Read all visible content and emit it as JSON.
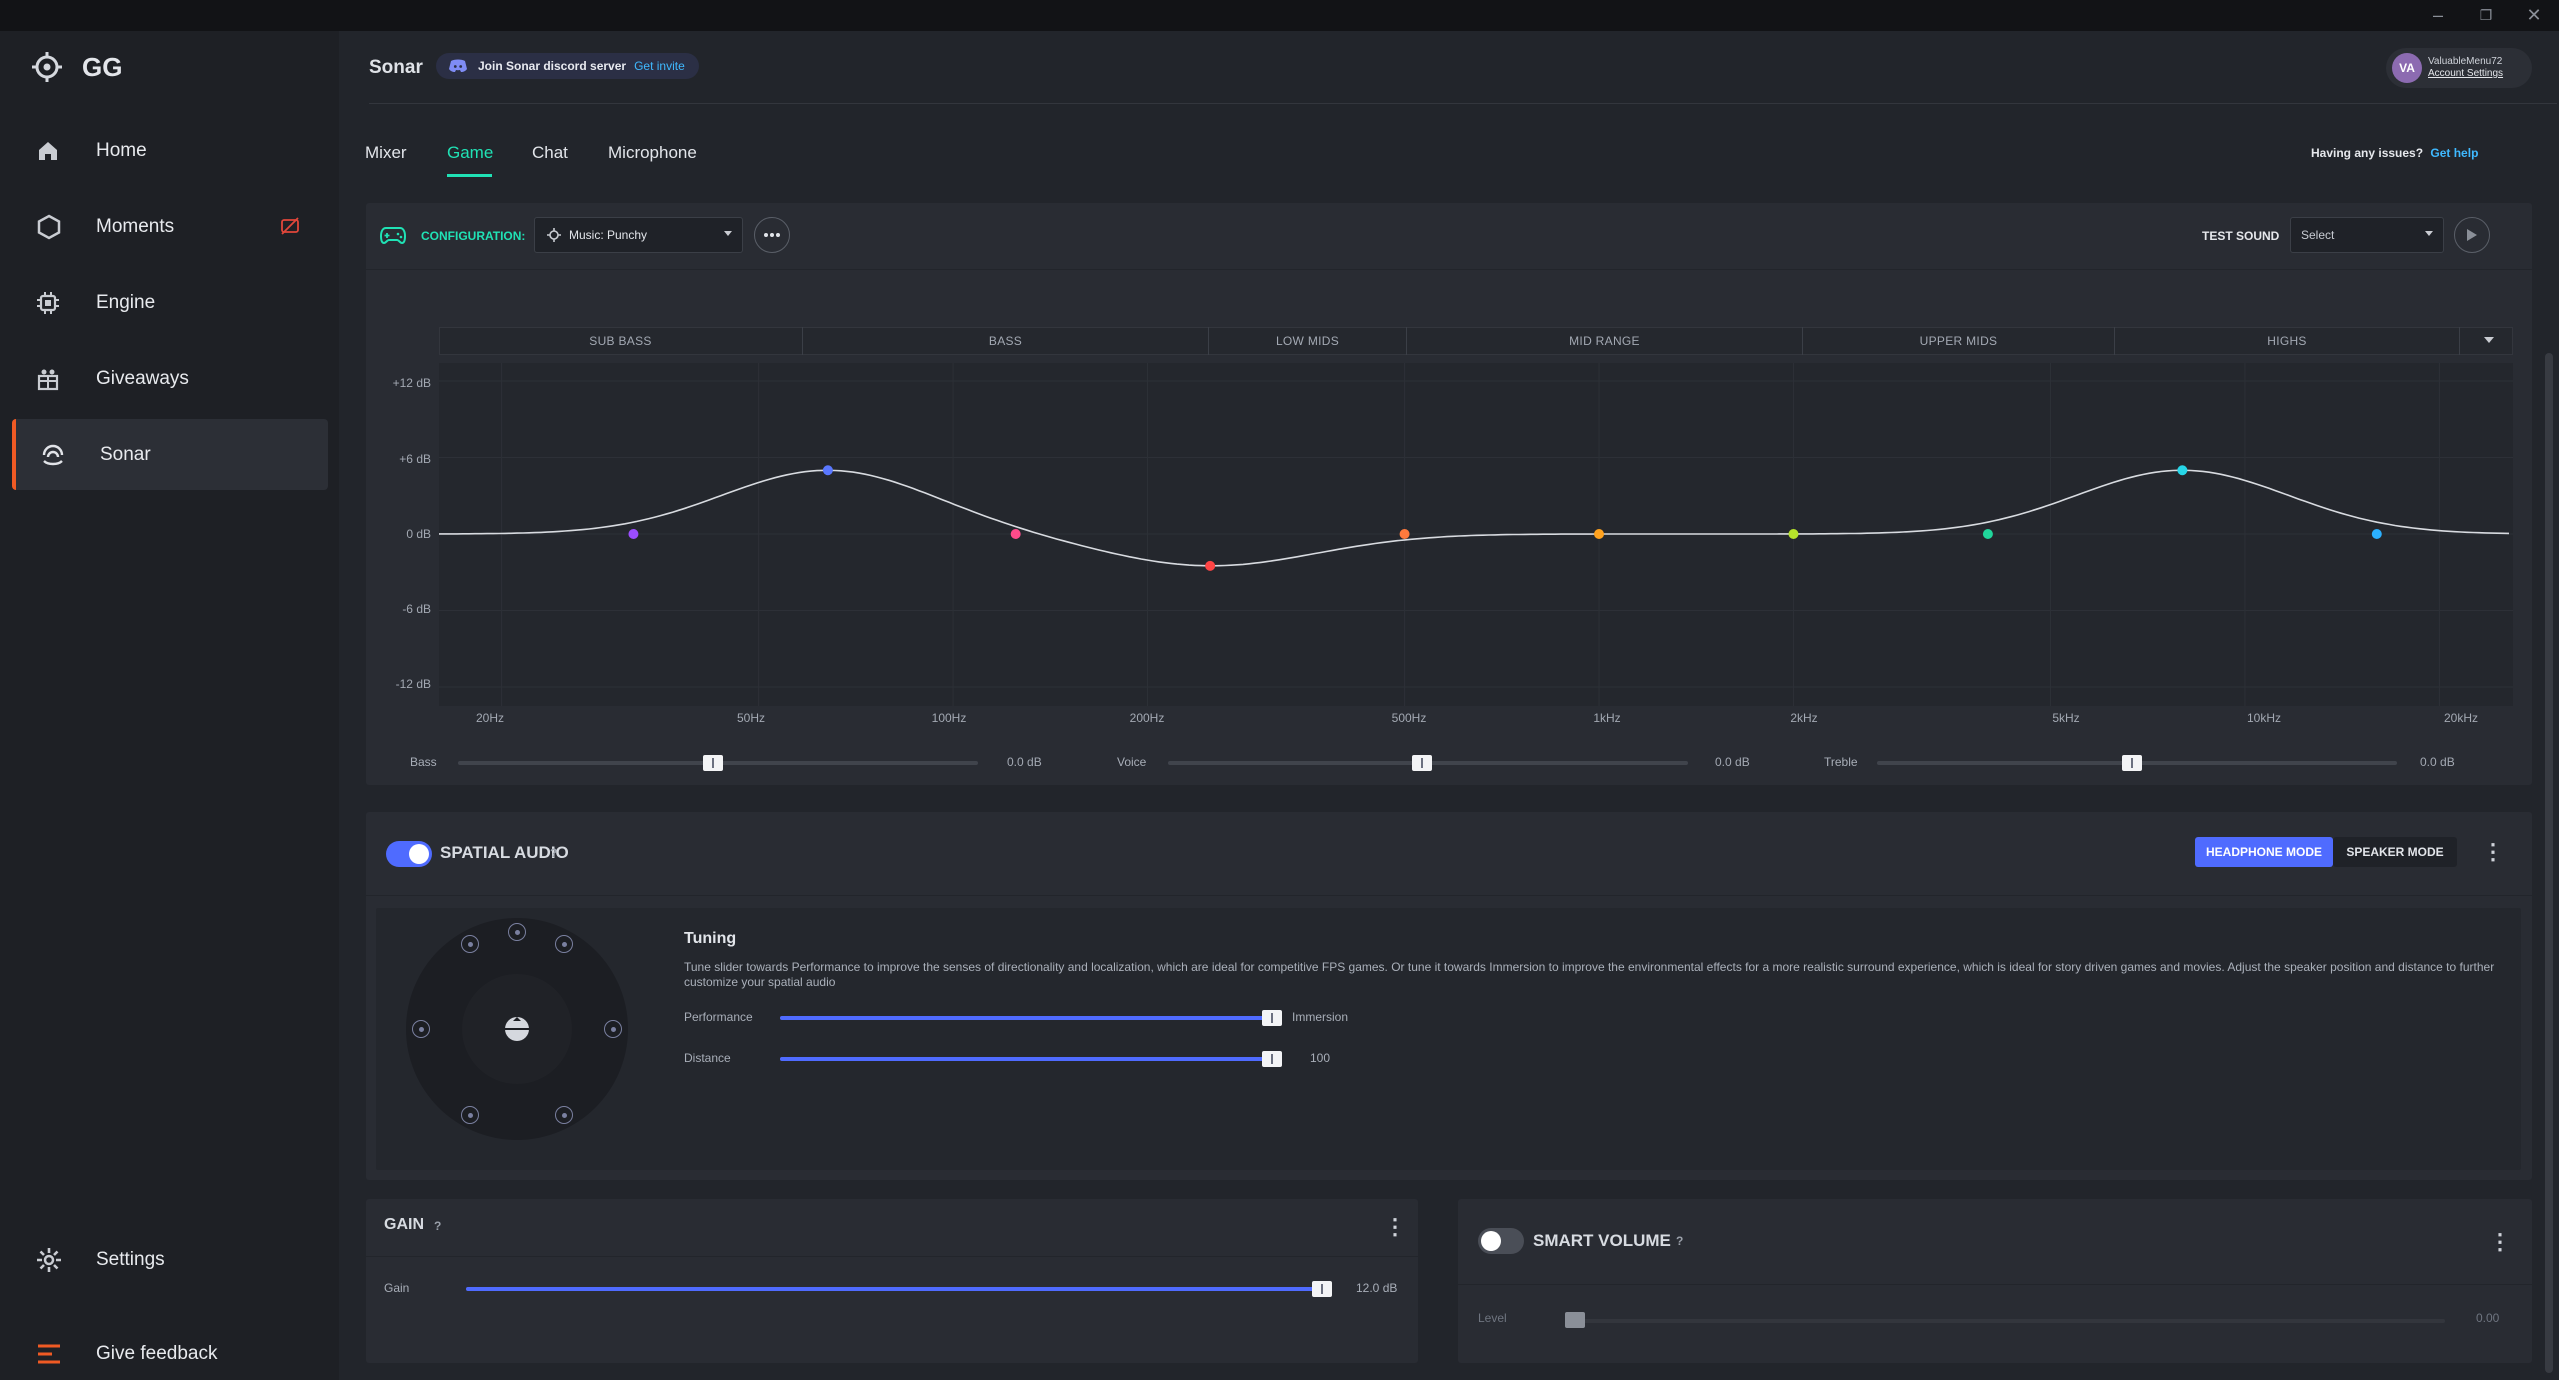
{
  "window": {
    "controls": [
      "–",
      "❐",
      "✕"
    ]
  },
  "brand": {
    "logo_text": "GG"
  },
  "sidebar": {
    "items": [
      {
        "label": "Home",
        "icon": "home-icon"
      },
      {
        "label": "Moments",
        "icon": "moments-icon"
      },
      {
        "label": "Engine",
        "icon": "engine-icon"
      },
      {
        "label": "Giveaways",
        "icon": "giveaways-icon"
      },
      {
        "label": "Sonar",
        "icon": "sonar-icon"
      }
    ],
    "settings_label": "Settings",
    "feedback_label": "Give feedback"
  },
  "header": {
    "title": "Sonar",
    "discord_text": "Join Sonar discord server",
    "discord_link": "Get invite",
    "avatar_initials": "VA",
    "username": "ValuableMenu72",
    "account_link": "Account Settings"
  },
  "tabs": [
    "Mixer",
    "Game",
    "Chat",
    "Microphone"
  ],
  "help": {
    "text": "Having any issues?",
    "link": "Get help"
  },
  "config": {
    "label": "CONFIGURATION:",
    "value": "Music: Punchy",
    "test_sound_label": "TEST SOUND",
    "test_sound_value": "Select"
  },
  "eq": {
    "bands": [
      "SUB BASS",
      "BASS",
      "LOW MIDS",
      "MID RANGE",
      "UPPER MIDS",
      "HIGHS"
    ],
    "db_labels": [
      "+12 dB",
      "+6 dB",
      "0 dB",
      "-6 dB",
      "-12 dB"
    ],
    "freq_labels": [
      "20Hz",
      "50Hz",
      "100Hz",
      "200Hz",
      "500Hz",
      "1kHz",
      "2kHz",
      "5kHz",
      "10kHz",
      "20kHz"
    ],
    "points": [
      {
        "freq": "32Hz",
        "gain_db": 0.0,
        "color": "#9b4dff"
      },
      {
        "freq": "64Hz",
        "gain_db": 5.0,
        "color": "#5a78ff"
      },
      {
        "freq": "125Hz",
        "gain_db": 0.0,
        "color": "#ff4b8b"
      },
      {
        "freq": "250Hz",
        "gain_db": -2.5,
        "color": "#ff4545"
      },
      {
        "freq": "500Hz",
        "gain_db": 0.0,
        "color": "#ff7a3d"
      },
      {
        "freq": "1kHz",
        "gain_db": 0.0,
        "color": "#ffa21f"
      },
      {
        "freq": "2kHz",
        "gain_db": 0.0,
        "color": "#b6e32b"
      },
      {
        "freq": "4kHz",
        "gain_db": 0.0,
        "color": "#20d69b"
      },
      {
        "freq": "8kHz",
        "gain_db": 5.0,
        "color": "#27d6e8"
      },
      {
        "freq": "16kHz",
        "gain_db": 0.0,
        "color": "#2bb0ff"
      }
    ],
    "sliders": [
      {
        "label": "Bass",
        "value": "0.0 dB",
        "level": 0.5
      },
      {
        "label": "Voice",
        "value": "0.0 dB",
        "level": 0.5
      },
      {
        "label": "Treble",
        "value": "0.0 dB",
        "level": 0.5
      }
    ]
  },
  "spatial": {
    "title": "SPATIAL AUDIO",
    "help": "?",
    "enabled": true,
    "mode_headphone": "HEADPHONE MODE",
    "mode_speaker": "SPEAKER MODE",
    "tuning_title": "Tuning",
    "tuning_desc": "Tune slider towards Performance to improve the senses of directionality and localization, which are ideal for competitive FPS games. Or tune it towards Immersion to improve the environmental effects for a more realistic surround experience, which is ideal for story driven games and movies. Adjust the speaker position and distance to further customize your spatial audio",
    "performance_label": "Performance",
    "immersion_label": "Immersion",
    "performance_level": 1.0,
    "distance_label": "Distance",
    "distance_value": "100",
    "distance_level": 1.0
  },
  "gain": {
    "title": "GAIN",
    "help": "?",
    "slider_label": "Gain",
    "value": "12.0 dB",
    "level": 1.0
  },
  "smart_volume": {
    "title": "SMART VOLUME",
    "help": "?",
    "enabled": false,
    "level_label": "Level",
    "value": "0.00",
    "level": 0.0
  },
  "colors": {
    "accent": "#20e2b5",
    "brand_orange": "#f05a24",
    "slider_blue": "#4f6bff"
  }
}
